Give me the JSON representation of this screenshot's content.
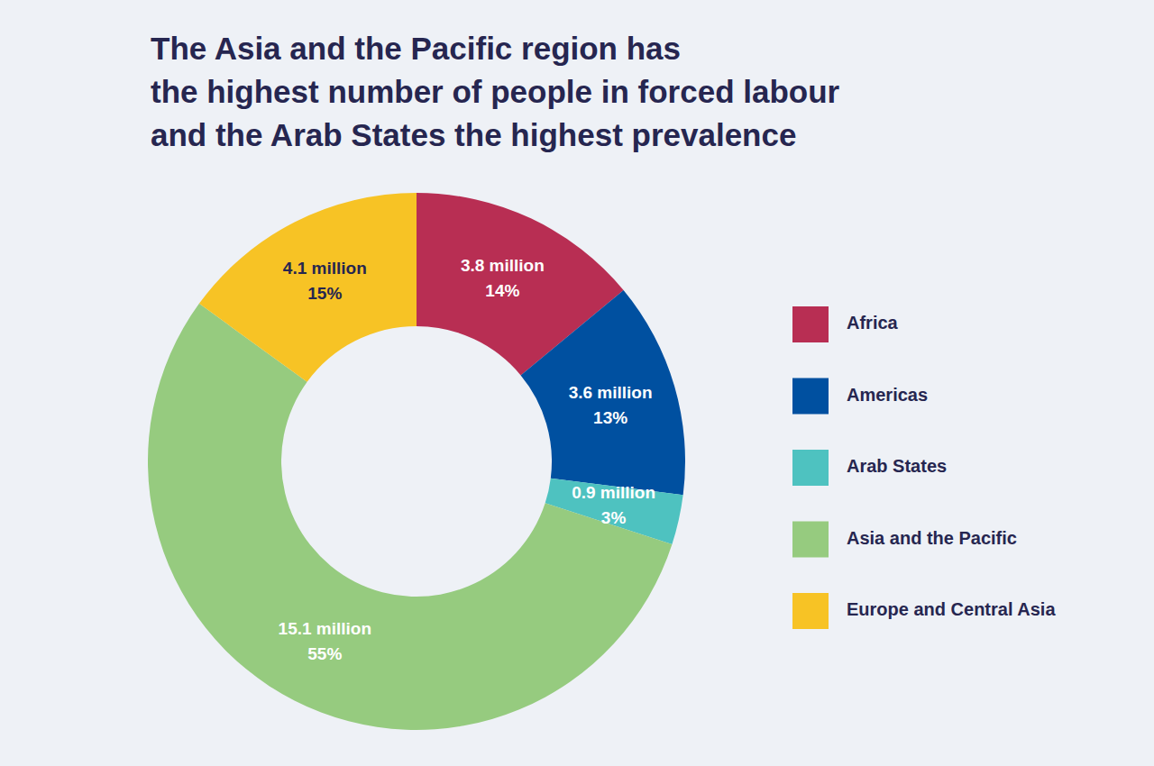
{
  "chart_data": {
    "type": "pie",
    "title": [
      "The Asia and the Pacific region has",
      "the highest number of people in forced labour",
      "and the Arab States the highest prevalence"
    ],
    "categories": [
      "Africa",
      "Americas",
      "Arab States",
      "Asia and the Pacific",
      "Europe and Central Asia"
    ],
    "values": [
      14,
      13,
      3,
      55,
      15
    ],
    "value_labels": [
      "14%",
      "13%",
      "3%",
      "55%",
      "15%"
    ],
    "counts": [
      3.8,
      3.6,
      0.9,
      15.1,
      4.1
    ],
    "count_labels": [
      "3.8 million",
      "3.6 million",
      "0.9 million",
      "15.1 million",
      "4.1 million"
    ],
    "colors": [
      "#b82e53",
      "#0050a0",
      "#4ec2c0",
      "#96cb7f",
      "#f7c325"
    ],
    "data_labels": true,
    "legend": "right"
  }
}
